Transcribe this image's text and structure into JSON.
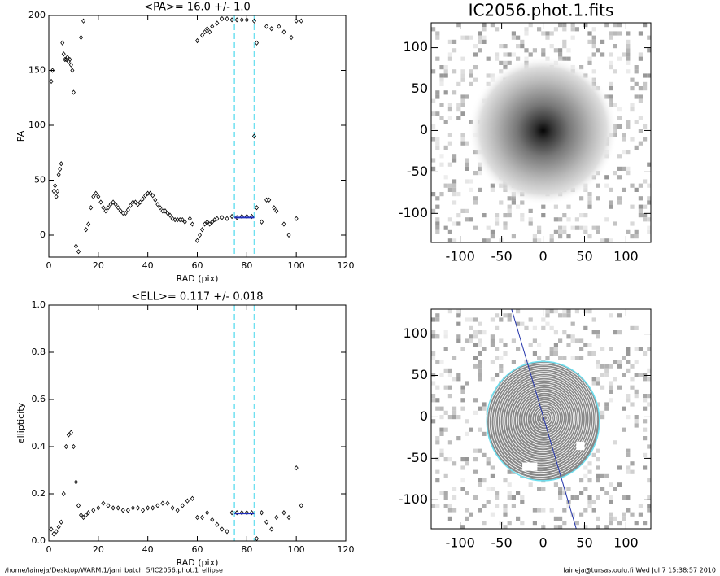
{
  "chart_data": [
    {
      "type": "scatter",
      "title": "<PA>=  16.0 +/-   1.0",
      "xlabel": "RAD (pix)",
      "ylabel": "PA",
      "xlim": [
        0,
        120
      ],
      "ylim": [
        -20,
        200
      ],
      "xticks": [
        0,
        20,
        40,
        60,
        80,
        100,
        120
      ],
      "yticks": [
        0,
        50,
        100,
        150,
        200
      ],
      "color": "#000000",
      "x": [
        1,
        1.5,
        2,
        2.5,
        3,
        3.5,
        4,
        4.5,
        5,
        5.5,
        6,
        6.5,
        7,
        7.5,
        8,
        8.5,
        9,
        9.5,
        10,
        11,
        12,
        13,
        14,
        15,
        16,
        17,
        18,
        19,
        20,
        21,
        22,
        23,
        24,
        25,
        26,
        27,
        28,
        29,
        30,
        31,
        32,
        33,
        34,
        35,
        36,
        37,
        38,
        39,
        40,
        41,
        42,
        43,
        44,
        45,
        46,
        47,
        48,
        49,
        50,
        51,
        52,
        53,
        54,
        55,
        57,
        58,
        60,
        61,
        62,
        63,
        64,
        65,
        66,
        67,
        68,
        70,
        72,
        74,
        76,
        78,
        80,
        82,
        84,
        86,
        88,
        89,
        91,
        92,
        95,
        97,
        100,
        60,
        62,
        63,
        64,
        65,
        66,
        68,
        70,
        72,
        74,
        76,
        78,
        80,
        83,
        84,
        88,
        90,
        93,
        95,
        98,
        100,
        102,
        83
      ],
      "values": [
        140,
        150,
        40,
        45,
        35,
        40,
        55,
        60,
        65,
        175,
        165,
        160,
        160,
        162,
        158,
        160,
        155,
        150,
        130,
        -10,
        -15,
        180,
        195,
        5,
        10,
        25,
        35,
        38,
        35,
        30,
        25,
        22,
        25,
        28,
        30,
        28,
        25,
        22,
        20,
        20,
        23,
        27,
        30,
        30,
        28,
        30,
        33,
        36,
        38,
        38,
        36,
        32,
        28,
        25,
        22,
        22,
        20,
        18,
        15,
        14,
        14,
        14,
        14,
        12,
        15,
        10,
        -5,
        0,
        5,
        10,
        12,
        10,
        12,
        14,
        15,
        16,
        15,
        17,
        16,
        17,
        17,
        17,
        25,
        12,
        32,
        32,
        25,
        22,
        10,
        0,
        15,
        177,
        182,
        185,
        188,
        185,
        190,
        193,
        197,
        197,
        196,
        196,
        196,
        196,
        195,
        175,
        190,
        188,
        190,
        185,
        180,
        195,
        195,
        90
      ],
      "fit": {
        "x": [
          75,
          83
        ],
        "values": [
          16,
          16
        ],
        "color": "#1f2fbf"
      },
      "vlines": [
        75,
        83
      ],
      "vline_color": "#6fe0f0"
    },
    {
      "type": "scatter",
      "title": "<ELL>= 0.117 +/-  0.018",
      "xlabel": "RAD (pix)",
      "ylabel": "ellipticity",
      "xlim": [
        0,
        120
      ],
      "ylim": [
        0,
        1
      ],
      "xticks": [
        0,
        20,
        40,
        60,
        80,
        100,
        120
      ],
      "yticks": [
        {
          "value": 0,
          "label": "0.0"
        },
        0.2,
        0.4,
        0.6,
        0.8,
        {
          "value": 1,
          "label": "1.0"
        }
      ],
      "color": "#000000",
      "x": [
        1,
        2,
        3,
        4,
        5,
        6,
        7,
        8,
        9,
        10,
        11,
        12,
        13,
        14,
        15,
        16,
        18,
        20,
        22,
        24,
        26,
        28,
        30,
        32,
        34,
        36,
        38,
        40,
        42,
        44,
        46,
        48,
        50,
        52,
        54,
        56,
        58,
        60,
        62,
        64,
        66,
        68,
        70,
        72,
        74,
        76,
        78,
        80,
        82,
        84,
        86,
        88,
        90,
        92,
        95,
        97,
        100,
        102
      ],
      "values": [
        0.05,
        0.03,
        0.04,
        0.06,
        0.08,
        0.2,
        0.4,
        0.45,
        0.46,
        0.4,
        0.25,
        0.15,
        0.11,
        0.1,
        0.11,
        0.12,
        0.13,
        0.14,
        0.16,
        0.15,
        0.14,
        0.14,
        0.13,
        0.13,
        0.14,
        0.14,
        0.13,
        0.14,
        0.14,
        0.15,
        0.16,
        0.16,
        0.14,
        0.13,
        0.15,
        0.17,
        0.18,
        0.1,
        0.1,
        0.12,
        0.09,
        0.07,
        0.05,
        0.04,
        0.12,
        0.12,
        0.12,
        0.12,
        0.12,
        0.01,
        0.12,
        0.08,
        0.05,
        0.1,
        0.12,
        0.1,
        0.31,
        0.15
      ],
      "fit": {
        "x": [
          75,
          83
        ],
        "values": [
          0.117,
          0.117
        ],
        "color": "#1f2fbf"
      },
      "vlines": [
        75,
        83
      ],
      "vline_color": "#6fe0f0"
    },
    {
      "type": "image",
      "title": "IC2056.phot.1.fits",
      "xlim": [
        -135,
        130
      ],
      "ylim": [
        -135,
        130
      ],
      "xticks": [
        -100,
        -50,
        0,
        50,
        100
      ],
      "yticks": [
        -100,
        -50,
        0,
        50,
        100
      ]
    },
    {
      "type": "contours",
      "xlim": [
        -135,
        130
      ],
      "ylim": [
        -135,
        130
      ],
      "xticks": [
        -100,
        -50,
        0,
        50,
        100
      ],
      "yticks": [
        -100,
        -50,
        0,
        50,
        100
      ]
    }
  ],
  "footer_left": "/home/laineja/Desktop/WARM.1/jani_batch_5/IC2056.phot.1_ellipse",
  "footer_right": "laineja@tursas.oulu.fi  Wed Jul  7 15:38:57 2010"
}
